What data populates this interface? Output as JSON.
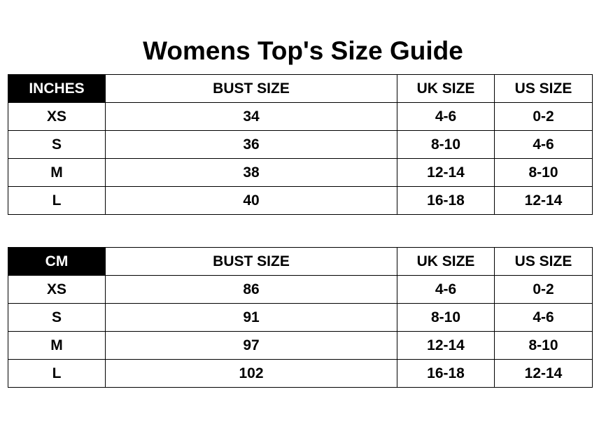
{
  "title": "Womens Top's Size Guide",
  "tables": [
    {
      "headers": [
        "INCHES",
        "BUST SIZE",
        "UK SIZE",
        "US SIZE"
      ],
      "rows": [
        [
          "XS",
          "34",
          "4-6",
          "0-2"
        ],
        [
          "S",
          "36",
          "8-10",
          "4-6"
        ],
        [
          "M",
          "38",
          "12-14",
          "8-10"
        ],
        [
          "L",
          "40",
          "16-18",
          "12-14"
        ]
      ]
    },
    {
      "headers": [
        "CM",
        "BUST SIZE",
        "UK SIZE",
        "US SIZE"
      ],
      "rows": [
        [
          "XS",
          "86",
          "4-6",
          "0-2"
        ],
        [
          "S",
          "91",
          "8-10",
          "4-6"
        ],
        [
          "M",
          "97",
          "12-14",
          "8-10"
        ],
        [
          "L",
          "102",
          "16-18",
          "12-14"
        ]
      ]
    }
  ],
  "colors": {
    "header_unit_bg": "#000000",
    "header_unit_text": "#ffffff"
  }
}
